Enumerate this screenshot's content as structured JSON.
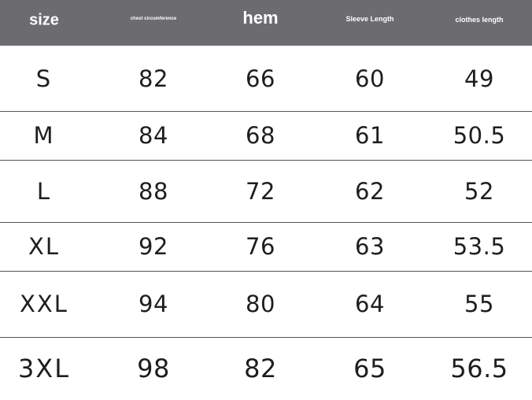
{
  "table": {
    "header": [
      "size",
      "chest circumference",
      "hem",
      "Sleeve Length",
      "clothes length"
    ],
    "rows": [
      [
        "S",
        "82",
        "66",
        "60",
        "49"
      ],
      [
        "M",
        "84",
        "68",
        "61",
        "50.5"
      ],
      [
        "L",
        "88",
        "72",
        "62",
        "52"
      ],
      [
        "XL",
        "92",
        "76",
        "63",
        "53.5"
      ],
      [
        "XXL",
        "94",
        "80",
        "64",
        "55"
      ],
      [
        "3XL",
        "98",
        "82",
        "65",
        "56.5"
      ]
    ]
  }
}
